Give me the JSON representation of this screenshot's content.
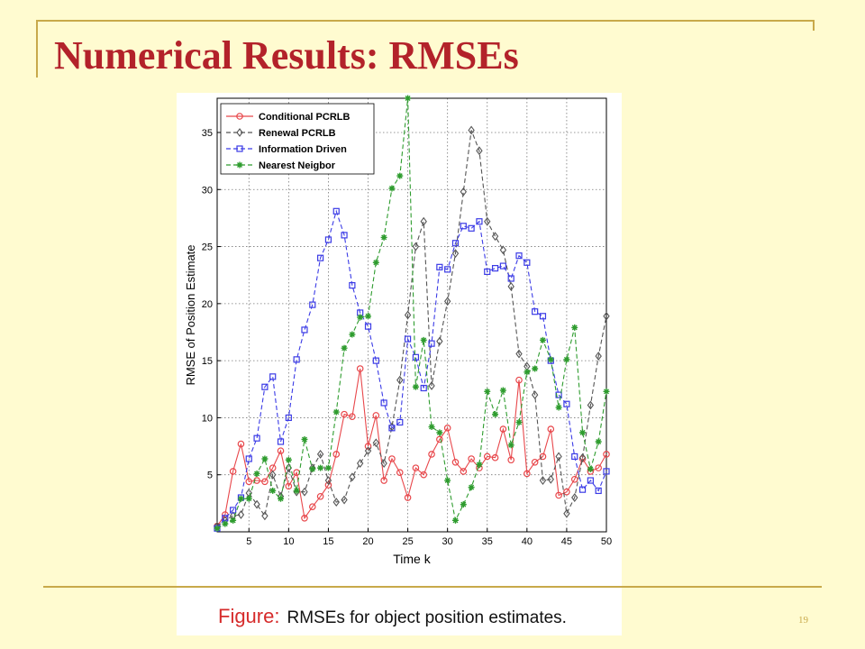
{
  "slide": {
    "title": "Numerical Results: RMSEs",
    "page_number": "19",
    "colors": {
      "background": "#FFFBD0",
      "title": "#B3222A",
      "rule": "#C8A94A"
    }
  },
  "figure": {
    "caption_label": "Figure:",
    "caption_text": "RMSEs for object position estimates."
  },
  "chart_data": {
    "type": "line",
    "xlabel": "Time k",
    "ylabel": "RMSE of Position Estimate",
    "xlim": [
      1,
      50
    ],
    "ylim": [
      0,
      38
    ],
    "xticks": [
      5,
      10,
      15,
      20,
      25,
      30,
      35,
      40,
      45,
      50
    ],
    "yticks": [
      5,
      10,
      15,
      20,
      25,
      30,
      35
    ],
    "grid": true,
    "legend_position": "top-left",
    "x": [
      1,
      2,
      3,
      4,
      5,
      6,
      7,
      8,
      9,
      10,
      11,
      12,
      13,
      14,
      15,
      16,
      17,
      18,
      19,
      20,
      21,
      22,
      23,
      24,
      25,
      26,
      27,
      28,
      29,
      30,
      31,
      32,
      33,
      34,
      35,
      36,
      37,
      38,
      39,
      40,
      41,
      42,
      43,
      44,
      45,
      46,
      47,
      48,
      49,
      50
    ],
    "series": [
      {
        "name": "Conditional PCRLB",
        "color": "#E8474B",
        "dash": "solid",
        "marker": "circle",
        "values": [
          0.5,
          1.5,
          5.3,
          7.7,
          4.4,
          4.5,
          4.4,
          5.6,
          7.1,
          4.0,
          5.2,
          1.2,
          2.2,
          3.1,
          4.1,
          6.8,
          10.3,
          10.1,
          14.3,
          7.5,
          10.2,
          4.5,
          6.4,
          5.2,
          3.0,
          5.6,
          5.0,
          6.8,
          8.1,
          9.1,
          6.1,
          5.3,
          6.4,
          5.6,
          6.6,
          6.5,
          9.0,
          6.3,
          13.3,
          5.1,
          6.1,
          6.6,
          9.0,
          3.2,
          3.5,
          4.6,
          6.4,
          5.3,
          5.6,
          6.8
        ]
      },
      {
        "name": "Renewal PCRLB",
        "color": "#555555",
        "dash": "dashed",
        "marker": "diamond",
        "values": [
          0.5,
          1.0,
          1.4,
          1.5,
          3.4,
          2.4,
          1.4,
          5.0,
          3.1,
          5.6,
          3.5,
          3.5,
          5.6,
          6.8,
          4.5,
          2.6,
          2.8,
          4.8,
          6.0,
          7.1,
          7.8,
          6.0,
          9.2,
          13.3,
          19.0,
          25.0,
          27.2,
          12.8,
          16.7,
          20.2,
          24.4,
          29.8,
          35.2,
          33.4,
          27.2,
          25.9,
          24.7,
          21.5,
          15.6,
          14.5,
          12.0,
          4.5,
          4.6,
          6.6,
          1.6,
          3.0,
          6.5,
          11.1,
          15.4,
          18.9
        ]
      },
      {
        "name": "Information Driven",
        "color": "#3B3BE6",
        "dash": "dashed",
        "marker": "square",
        "values": [
          0.3,
          1.2,
          1.9,
          3.0,
          6.4,
          8.2,
          12.7,
          13.6,
          7.9,
          10.0,
          15.1,
          17.7,
          19.9,
          24.0,
          25.6,
          28.1,
          26.0,
          21.6,
          19.2,
          18.0,
          15.0,
          11.3,
          9.1,
          9.6,
          16.9,
          15.3,
          12.6,
          16.5,
          23.2,
          23.0,
          25.3,
          26.8,
          26.6,
          27.2,
          22.8,
          23.1,
          23.3,
          22.2,
          24.2,
          23.6,
          19.3,
          18.9,
          15.0,
          12.0,
          11.2,
          6.6,
          3.7,
          4.5,
          3.6,
          5.3
        ]
      },
      {
        "name": "Nearest Neigbor",
        "color": "#2E9C2E",
        "dash": "dashed",
        "marker": "star",
        "values": [
          0.3,
          0.7,
          1.0,
          2.9,
          2.9,
          5.1,
          6.4,
          3.6,
          2.9,
          6.3,
          3.6,
          8.1,
          5.5,
          5.6,
          5.6,
          10.5,
          16.1,
          17.3,
          18.8,
          18.9,
          23.6,
          25.8,
          30.1,
          31.2,
          38.0,
          12.7,
          16.8,
          9.2,
          8.7,
          4.5,
          1.0,
          2.4,
          3.9,
          5.9,
          12.3,
          10.3,
          12.4,
          7.6,
          9.6,
          14.0,
          14.3,
          16.8,
          15.1,
          10.9,
          15.1,
          17.9,
          8.7,
          5.5,
          7.9,
          12.3
        ]
      }
    ]
  }
}
